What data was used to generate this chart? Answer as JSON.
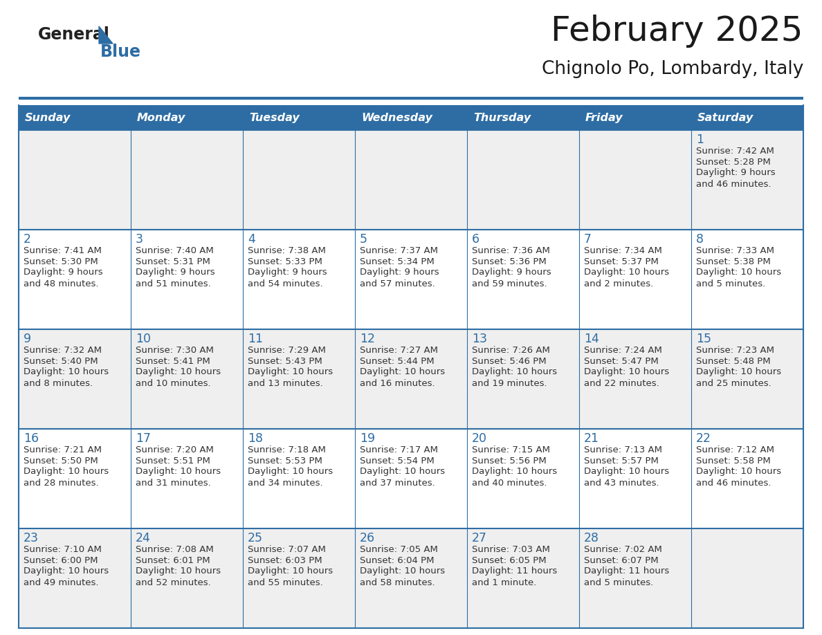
{
  "title": "February 2025",
  "subtitle": "Chignolo Po, Lombardy, Italy",
  "days_of_week": [
    "Sunday",
    "Monday",
    "Tuesday",
    "Wednesday",
    "Thursday",
    "Friday",
    "Saturday"
  ],
  "header_bg": "#2E6DA4",
  "header_text": "#FFFFFF",
  "cell_bg_odd": "#EFEFEF",
  "cell_bg_even": "#FFFFFF",
  "cell_text": "#333333",
  "day_num_color": "#2E6DA4",
  "border_color": "#2E6DA4",
  "title_color": "#1a1a1a",
  "subtitle_color": "#1a1a1a",
  "logo_general_color": "#222222",
  "logo_blue_color": "#2E6DA4",
  "weeks": [
    [
      {
        "day": null,
        "info": null
      },
      {
        "day": null,
        "info": null
      },
      {
        "day": null,
        "info": null
      },
      {
        "day": null,
        "info": null
      },
      {
        "day": null,
        "info": null
      },
      {
        "day": null,
        "info": null
      },
      {
        "day": 1,
        "info": "Sunrise: 7:42 AM\nSunset: 5:28 PM\nDaylight: 9 hours\nand 46 minutes."
      }
    ],
    [
      {
        "day": 2,
        "info": "Sunrise: 7:41 AM\nSunset: 5:30 PM\nDaylight: 9 hours\nand 48 minutes."
      },
      {
        "day": 3,
        "info": "Sunrise: 7:40 AM\nSunset: 5:31 PM\nDaylight: 9 hours\nand 51 minutes."
      },
      {
        "day": 4,
        "info": "Sunrise: 7:38 AM\nSunset: 5:33 PM\nDaylight: 9 hours\nand 54 minutes."
      },
      {
        "day": 5,
        "info": "Sunrise: 7:37 AM\nSunset: 5:34 PM\nDaylight: 9 hours\nand 57 minutes."
      },
      {
        "day": 6,
        "info": "Sunrise: 7:36 AM\nSunset: 5:36 PM\nDaylight: 9 hours\nand 59 minutes."
      },
      {
        "day": 7,
        "info": "Sunrise: 7:34 AM\nSunset: 5:37 PM\nDaylight: 10 hours\nand 2 minutes."
      },
      {
        "day": 8,
        "info": "Sunrise: 7:33 AM\nSunset: 5:38 PM\nDaylight: 10 hours\nand 5 minutes."
      }
    ],
    [
      {
        "day": 9,
        "info": "Sunrise: 7:32 AM\nSunset: 5:40 PM\nDaylight: 10 hours\nand 8 minutes."
      },
      {
        "day": 10,
        "info": "Sunrise: 7:30 AM\nSunset: 5:41 PM\nDaylight: 10 hours\nand 10 minutes."
      },
      {
        "day": 11,
        "info": "Sunrise: 7:29 AM\nSunset: 5:43 PM\nDaylight: 10 hours\nand 13 minutes."
      },
      {
        "day": 12,
        "info": "Sunrise: 7:27 AM\nSunset: 5:44 PM\nDaylight: 10 hours\nand 16 minutes."
      },
      {
        "day": 13,
        "info": "Sunrise: 7:26 AM\nSunset: 5:46 PM\nDaylight: 10 hours\nand 19 minutes."
      },
      {
        "day": 14,
        "info": "Sunrise: 7:24 AM\nSunset: 5:47 PM\nDaylight: 10 hours\nand 22 minutes."
      },
      {
        "day": 15,
        "info": "Sunrise: 7:23 AM\nSunset: 5:48 PM\nDaylight: 10 hours\nand 25 minutes."
      }
    ],
    [
      {
        "day": 16,
        "info": "Sunrise: 7:21 AM\nSunset: 5:50 PM\nDaylight: 10 hours\nand 28 minutes."
      },
      {
        "day": 17,
        "info": "Sunrise: 7:20 AM\nSunset: 5:51 PM\nDaylight: 10 hours\nand 31 minutes."
      },
      {
        "day": 18,
        "info": "Sunrise: 7:18 AM\nSunset: 5:53 PM\nDaylight: 10 hours\nand 34 minutes."
      },
      {
        "day": 19,
        "info": "Sunrise: 7:17 AM\nSunset: 5:54 PM\nDaylight: 10 hours\nand 37 minutes."
      },
      {
        "day": 20,
        "info": "Sunrise: 7:15 AM\nSunset: 5:56 PM\nDaylight: 10 hours\nand 40 minutes."
      },
      {
        "day": 21,
        "info": "Sunrise: 7:13 AM\nSunset: 5:57 PM\nDaylight: 10 hours\nand 43 minutes."
      },
      {
        "day": 22,
        "info": "Sunrise: 7:12 AM\nSunset: 5:58 PM\nDaylight: 10 hours\nand 46 minutes."
      }
    ],
    [
      {
        "day": 23,
        "info": "Sunrise: 7:10 AM\nSunset: 6:00 PM\nDaylight: 10 hours\nand 49 minutes."
      },
      {
        "day": 24,
        "info": "Sunrise: 7:08 AM\nSunset: 6:01 PM\nDaylight: 10 hours\nand 52 minutes."
      },
      {
        "day": 25,
        "info": "Sunrise: 7:07 AM\nSunset: 6:03 PM\nDaylight: 10 hours\nand 55 minutes."
      },
      {
        "day": 26,
        "info": "Sunrise: 7:05 AM\nSunset: 6:04 PM\nDaylight: 10 hours\nand 58 minutes."
      },
      {
        "day": 27,
        "info": "Sunrise: 7:03 AM\nSunset: 6:05 PM\nDaylight: 11 hours\nand 1 minute."
      },
      {
        "day": 28,
        "info": "Sunrise: 7:02 AM\nSunset: 6:07 PM\nDaylight: 11 hours\nand 5 minutes."
      },
      {
        "day": null,
        "info": null
      }
    ]
  ]
}
